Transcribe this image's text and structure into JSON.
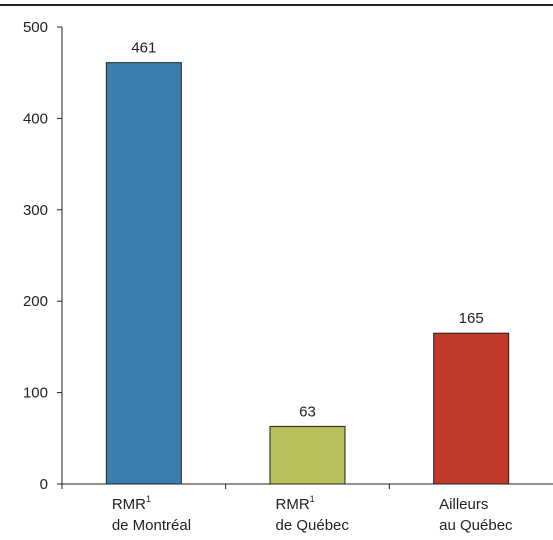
{
  "chart_data": {
    "type": "bar",
    "categories": [
      {
        "line1": "RMR",
        "sup": "1",
        "line2": "de Montréal"
      },
      {
        "line1": "RMR",
        "sup": "1",
        "line2": "de Québec"
      },
      {
        "line1": "Ailleurs",
        "sup": "",
        "line2": "au Québec"
      }
    ],
    "values": [
      461,
      63,
      165
    ],
    "data_labels": [
      "461",
      "63",
      "165"
    ],
    "ylim": [
      0,
      500
    ],
    "yticks": [
      "0",
      "100",
      "200",
      "300",
      "400",
      "500"
    ],
    "colors": [
      "#3a7fb0",
      "#b7c05a",
      "#c0392b"
    ],
    "grid": false,
    "title": "",
    "xlabel": "",
    "ylabel": ""
  }
}
